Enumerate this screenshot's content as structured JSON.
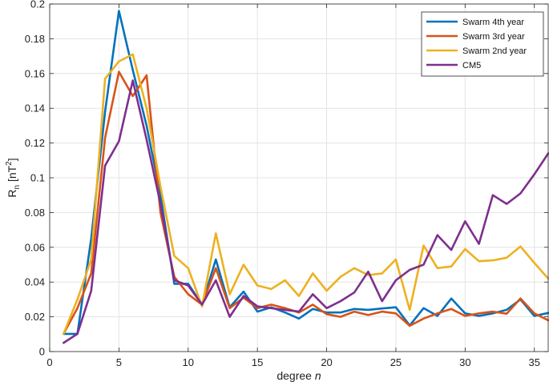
{
  "chart_data": {
    "type": "line",
    "title": "",
    "xlabel": {
      "text": "degree ",
      "italic": "n"
    },
    "ylabel": {
      "base": "R",
      "sub": "n",
      "rest_open": " [nT",
      "sup": "2",
      "rest_close": "]"
    },
    "xlim": [
      0,
      36
    ],
    "ylim": [
      0,
      0.2
    ],
    "xticks": [
      0,
      5,
      10,
      15,
      20,
      25,
      30,
      35
    ],
    "yticks": [
      0,
      0.02,
      0.04,
      0.06,
      0.08,
      0.1,
      0.12,
      0.14,
      0.16,
      0.18,
      0.2
    ],
    "ytick_labels": [
      "0",
      "0.02",
      "0.04",
      "0.06",
      "0.08",
      "0.1",
      "0.12",
      "0.14",
      "0.16",
      "0.18",
      "0.2"
    ],
    "grid": true,
    "legend_position": "top-right",
    "x": [
      1,
      2,
      3,
      4,
      5,
      6,
      7,
      8,
      9,
      10,
      11,
      12,
      13,
      14,
      15,
      16,
      17,
      18,
      19,
      20,
      21,
      22,
      23,
      24,
      25,
      26,
      27,
      28,
      29,
      30,
      31,
      32,
      33,
      34,
      35,
      36
    ],
    "series": [
      {
        "name": "Swarm 4th year",
        "color": "#0072BD",
        "values": [
          0.0102,
          0.0102,
          0.065,
          0.138,
          0.196,
          0.162,
          0.13,
          0.09,
          0.039,
          0.039,
          0.027,
          0.053,
          0.0255,
          0.0345,
          0.023,
          0.0255,
          0.0225,
          0.019,
          0.0245,
          0.0225,
          0.0225,
          0.0245,
          0.024,
          0.0248,
          0.0255,
          0.015,
          0.025,
          0.0205,
          0.0305,
          0.022,
          0.0205,
          0.022,
          0.024,
          0.03,
          0.0205,
          0.0222
        ]
      },
      {
        "name": "Swarm 3rd year",
        "color": "#D95319",
        "values": [
          0.0102,
          0.025,
          0.045,
          0.123,
          0.161,
          0.147,
          0.159,
          0.08,
          0.043,
          0.033,
          0.027,
          0.048,
          0.025,
          0.031,
          0.025,
          0.027,
          0.025,
          0.0225,
          0.027,
          0.0215,
          0.02,
          0.023,
          0.021,
          0.023,
          0.022,
          0.0148,
          0.019,
          0.022,
          0.0245,
          0.0205,
          0.022,
          0.023,
          0.0218,
          0.0305,
          0.022,
          0.018
        ]
      },
      {
        "name": "Swarm 2nd year",
        "color": "#EDB120",
        "values": [
          0.0102,
          0.03,
          0.053,
          0.157,
          0.167,
          0.171,
          0.14,
          0.095,
          0.055,
          0.048,
          0.026,
          0.068,
          0.033,
          0.05,
          0.038,
          0.036,
          0.041,
          0.032,
          0.045,
          0.035,
          0.043,
          0.048,
          0.044,
          0.045,
          0.053,
          0.024,
          0.061,
          0.048,
          0.049,
          0.059,
          0.052,
          0.0525,
          0.054,
          0.0605,
          0.051,
          0.042
        ]
      },
      {
        "name": "CM5",
        "color": "#7E2F8E",
        "values": [
          0.005,
          0.0102,
          0.035,
          0.107,
          0.121,
          0.156,
          0.122,
          0.085,
          0.041,
          0.038,
          0.027,
          0.041,
          0.02,
          0.032,
          0.026,
          0.025,
          0.024,
          0.023,
          0.033,
          0.025,
          0.029,
          0.034,
          0.046,
          0.029,
          0.041,
          0.047,
          0.05,
          0.067,
          0.0585,
          0.075,
          0.062,
          0.09,
          0.085,
          0.091,
          0.102,
          0.114
        ]
      }
    ]
  }
}
